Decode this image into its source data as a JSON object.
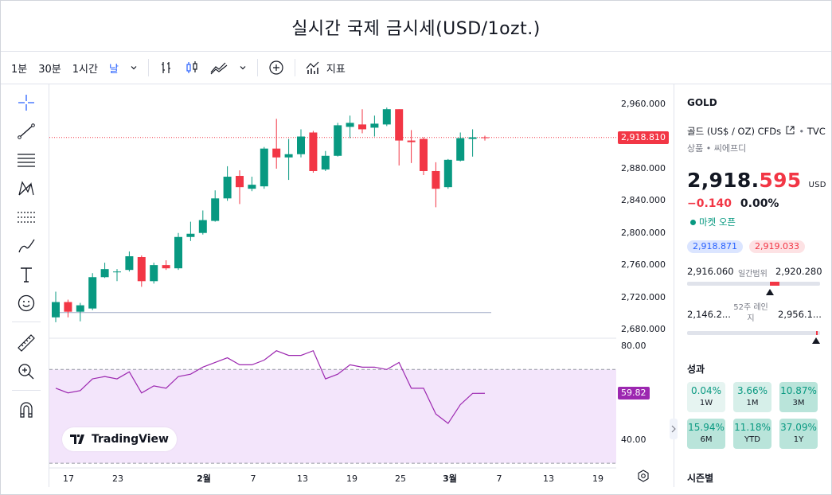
{
  "title": "실시간 국제 금시세(USD/1ozt.)",
  "toolbar": {
    "intervals": [
      "1분",
      "30분",
      "1시간",
      "날"
    ],
    "indicators_label": "지표"
  },
  "watermark": "TradingView",
  "chart_data": {
    "type": "candlestick",
    "symbol": "GOLD",
    "y_ticks": [
      "2,960.000",
      "2,920.000",
      "2,880.000",
      "2,840.000",
      "2,800.000",
      "2,760.000",
      "2,720.000",
      "2,680.000"
    ],
    "ylim": [
      2670,
      2975
    ],
    "last_price_label": "2,918.810",
    "last_price": 2918.81,
    "reference_line": 2701,
    "x_ticks": [
      "17",
      "23",
      "2월",
      "7",
      "13",
      "19",
      "25",
      "3월",
      "7",
      "13",
      "19"
    ],
    "candles": [
      {
        "o": 2695,
        "h": 2727,
        "l": 2689,
        "c": 2714
      },
      {
        "o": 2714,
        "h": 2717,
        "l": 2695,
        "c": 2702
      },
      {
        "o": 2702,
        "h": 2713,
        "l": 2690,
        "c": 2710
      },
      {
        "o": 2706,
        "h": 2750,
        "l": 2704,
        "c": 2745
      },
      {
        "o": 2745,
        "h": 2763,
        "l": 2744,
        "c": 2755
      },
      {
        "o": 2752,
        "h": 2755,
        "l": 2740,
        "c": 2752
      },
      {
        "o": 2754,
        "h": 2777,
        "l": 2752,
        "c": 2771
      },
      {
        "o": 2770,
        "h": 2772,
        "l": 2733,
        "c": 2740
      },
      {
        "o": 2740,
        "h": 2763,
        "l": 2737,
        "c": 2760
      },
      {
        "o": 2760,
        "h": 2766,
        "l": 2754,
        "c": 2756
      },
      {
        "o": 2756,
        "h": 2800,
        "l": 2754,
        "c": 2795
      },
      {
        "o": 2795,
        "h": 2814,
        "l": 2790,
        "c": 2799
      },
      {
        "o": 2800,
        "h": 2828,
        "l": 2798,
        "c": 2816
      },
      {
        "o": 2815,
        "h": 2853,
        "l": 2814,
        "c": 2843
      },
      {
        "o": 2843,
        "h": 2883,
        "l": 2840,
        "c": 2870
      },
      {
        "o": 2871,
        "h": 2878,
        "l": 2836,
        "c": 2857
      },
      {
        "o": 2855,
        "h": 2870,
        "l": 2852,
        "c": 2860
      },
      {
        "o": 2858,
        "h": 2907,
        "l": 2855,
        "c": 2905
      },
      {
        "o": 2905,
        "h": 2942,
        "l": 2880,
        "c": 2894
      },
      {
        "o": 2894,
        "h": 2917,
        "l": 2866,
        "c": 2898
      },
      {
        "o": 2898,
        "h": 2929,
        "l": 2894,
        "c": 2920
      },
      {
        "o": 2925,
        "h": 2927,
        "l": 2875,
        "c": 2877
      },
      {
        "o": 2879,
        "h": 2902,
        "l": 2877,
        "c": 2896
      },
      {
        "o": 2896,
        "h": 2937,
        "l": 2895,
        "c": 2934
      },
      {
        "o": 2932,
        "h": 2946,
        "l": 2918,
        "c": 2937
      },
      {
        "o": 2935,
        "h": 2954,
        "l": 2924,
        "c": 2929
      },
      {
        "o": 2931,
        "h": 2946,
        "l": 2920,
        "c": 2936
      },
      {
        "o": 2935,
        "h": 2956,
        "l": 2933,
        "c": 2954
      },
      {
        "o": 2954,
        "h": 2954,
        "l": 2884,
        "c": 2915
      },
      {
        "o": 2915,
        "h": 2928,
        "l": 2887,
        "c": 2913
      },
      {
        "o": 2917,
        "h": 2919,
        "l": 2872,
        "c": 2877
      },
      {
        "o": 2877,
        "h": 2888,
        "l": 2832,
        "c": 2855
      },
      {
        "o": 2857,
        "h": 2892,
        "l": 2855,
        "c": 2891
      },
      {
        "o": 2890,
        "h": 2925,
        "l": 2889,
        "c": 2918
      },
      {
        "o": 2917,
        "h": 2929,
        "l": 2895,
        "c": 2919
      },
      {
        "o": 2919,
        "h": 2921,
        "l": 2915,
        "c": 2918.81
      }
    ],
    "rsi": {
      "y_ticks": [
        "80.00",
        "40.00"
      ],
      "ylim": [
        28,
        83
      ],
      "band": [
        70,
        30
      ],
      "last_label": "59.82",
      "values": [
        62,
        60,
        61,
        66,
        67,
        66,
        69,
        60,
        63,
        62,
        67,
        68,
        71,
        73,
        75,
        72,
        72,
        74,
        78,
        76,
        76,
        78,
        66,
        68,
        72,
        71,
        71,
        70,
        73,
        62,
        62,
        51,
        47,
        55,
        59.8,
        59.82
      ]
    },
    "colors": {
      "up": "#089981",
      "down": "#f23645",
      "rsi_line": "#9c27b0",
      "rsi_band": "#f3e5fb"
    }
  },
  "sidebar": {
    "symbol": "GOLD",
    "name": "골드 (US$ / OZ) CFDs",
    "exchange": "TVC",
    "category": "상품 • 씨에프디",
    "price_main": "2,918.",
    "price_tail": "595",
    "currency": "USD",
    "change": "−0.140",
    "change_pct": "0.00%",
    "market_status": "마켓 오픈",
    "bid": "2,918.871",
    "ask": "2,919.033",
    "day_low": "2,916.060",
    "day_range_label": "일간범위",
    "day_high": "2,920.280",
    "week52_low": "2,146.2...",
    "week52_label": "52주 레인지",
    "week52_high": "2,956.1...",
    "performance_title": "성과",
    "performance": [
      {
        "value": "0.04%",
        "label": "1W"
      },
      {
        "value": "3.66%",
        "label": "1M"
      },
      {
        "value": "10.87%",
        "label": "3M"
      },
      {
        "value": "15.94%",
        "label": "6M"
      },
      {
        "value": "11.18%",
        "label": "YTD"
      },
      {
        "value": "37.09%",
        "label": "1Y"
      }
    ],
    "seasonal_title": "시즌별"
  }
}
